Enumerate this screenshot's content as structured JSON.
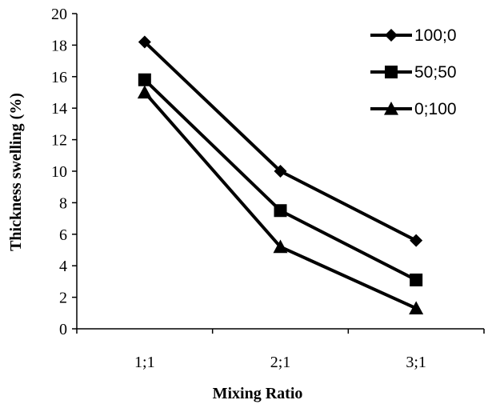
{
  "chart_data": {
    "type": "line",
    "title": "",
    "xlabel": "Mixing Ratio",
    "ylabel": "Thickness swelling (%)",
    "categories": [
      "1;1",
      "2;1",
      "3;1"
    ],
    "ylim": [
      0,
      20
    ],
    "yticks": [
      0,
      2,
      4,
      6,
      8,
      10,
      12,
      14,
      16,
      18,
      20
    ],
    "grid": false,
    "legend_position": "top-right",
    "series": [
      {
        "name": "100;0",
        "marker": "diamond",
        "color": "#000000",
        "values": [
          18.2,
          10.0,
          5.6
        ]
      },
      {
        "name": "50;50",
        "marker": "square",
        "color": "#000000",
        "values": [
          15.8,
          7.5,
          3.1
        ]
      },
      {
        "name": "0;100",
        "marker": "triangle",
        "color": "#000000",
        "values": [
          15.0,
          5.2,
          1.3
        ]
      }
    ]
  }
}
